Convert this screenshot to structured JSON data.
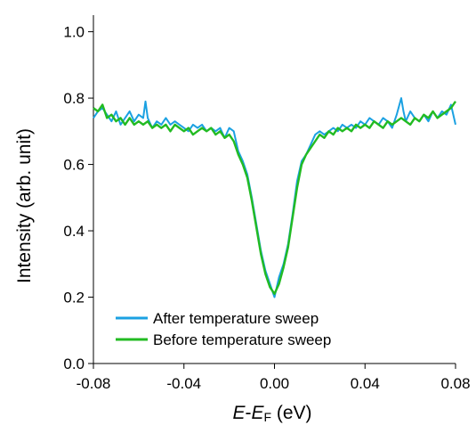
{
  "chart_data": {
    "type": "line",
    "xlabel": {
      "italic1": "E",
      "dash": "-",
      "italic2": "E",
      "sub": "F",
      "rest": " (eV)"
    },
    "ylabel": "Intensity (arb. unit)",
    "xlim": [
      -0.08,
      0.08
    ],
    "ylim": [
      0.0,
      1.05
    ],
    "xticks": [
      -0.08,
      -0.04,
      0.0,
      0.04,
      0.08
    ],
    "xtick_labels": [
      "-0.08",
      "-0.04",
      "0.00",
      "0.04",
      "0.08"
    ],
    "yticks": [
      0.0,
      0.2,
      0.4,
      0.6,
      0.8,
      1.0
    ],
    "ytick_labels": [
      "0.0",
      "0.2",
      "0.4",
      "0.6",
      "0.8",
      "1.0"
    ],
    "grid": false,
    "legend_position": "bottom-left",
    "series": [
      {
        "name": "After temperature sweep",
        "color": "#1ba1e2",
        "x": [
          -0.08,
          -0.078,
          -0.076,
          -0.074,
          -0.072,
          -0.07,
          -0.068,
          -0.066,
          -0.064,
          -0.062,
          -0.06,
          -0.058,
          -0.057,
          -0.056,
          -0.054,
          -0.052,
          -0.05,
          -0.048,
          -0.046,
          -0.044,
          -0.042,
          -0.04,
          -0.038,
          -0.036,
          -0.034,
          -0.032,
          -0.03,
          -0.028,
          -0.026,
          -0.024,
          -0.022,
          -0.02,
          -0.018,
          -0.016,
          -0.014,
          -0.012,
          -0.01,
          -0.008,
          -0.006,
          -0.004,
          -0.002,
          0.0,
          0.002,
          0.004,
          0.006,
          0.008,
          0.01,
          0.012,
          0.014,
          0.016,
          0.018,
          0.02,
          0.022,
          0.024,
          0.026,
          0.028,
          0.03,
          0.032,
          0.034,
          0.036,
          0.038,
          0.04,
          0.042,
          0.044,
          0.046,
          0.048,
          0.05,
          0.052,
          0.054,
          0.056,
          0.057,
          0.058,
          0.06,
          0.062,
          0.064,
          0.066,
          0.068,
          0.07,
          0.072,
          0.074,
          0.076,
          0.078,
          0.08
        ],
        "y": [
          0.74,
          0.76,
          0.77,
          0.75,
          0.73,
          0.76,
          0.72,
          0.74,
          0.76,
          0.73,
          0.75,
          0.74,
          0.79,
          0.74,
          0.71,
          0.73,
          0.72,
          0.74,
          0.72,
          0.73,
          0.72,
          0.71,
          0.7,
          0.72,
          0.71,
          0.72,
          0.7,
          0.71,
          0.7,
          0.71,
          0.68,
          0.71,
          0.7,
          0.64,
          0.61,
          0.57,
          0.5,
          0.42,
          0.34,
          0.28,
          0.24,
          0.2,
          0.26,
          0.3,
          0.36,
          0.45,
          0.55,
          0.61,
          0.63,
          0.66,
          0.69,
          0.7,
          0.69,
          0.7,
          0.71,
          0.7,
          0.72,
          0.71,
          0.72,
          0.71,
          0.73,
          0.72,
          0.74,
          0.73,
          0.72,
          0.74,
          0.73,
          0.71,
          0.75,
          0.8,
          0.76,
          0.73,
          0.76,
          0.74,
          0.73,
          0.75,
          0.73,
          0.76,
          0.74,
          0.76,
          0.75,
          0.78,
          0.72
        ]
      },
      {
        "name": "Before temperature sweep",
        "color": "#22bb22",
        "x": [
          -0.08,
          -0.078,
          -0.076,
          -0.074,
          -0.072,
          -0.07,
          -0.068,
          -0.066,
          -0.064,
          -0.062,
          -0.06,
          -0.058,
          -0.056,
          -0.054,
          -0.052,
          -0.05,
          -0.048,
          -0.046,
          -0.044,
          -0.042,
          -0.04,
          -0.038,
          -0.036,
          -0.034,
          -0.032,
          -0.03,
          -0.028,
          -0.026,
          -0.024,
          -0.022,
          -0.02,
          -0.018,
          -0.016,
          -0.014,
          -0.012,
          -0.01,
          -0.008,
          -0.006,
          -0.004,
          -0.002,
          0.0,
          0.002,
          0.004,
          0.006,
          0.008,
          0.01,
          0.012,
          0.014,
          0.016,
          0.018,
          0.02,
          0.022,
          0.024,
          0.026,
          0.028,
          0.03,
          0.032,
          0.034,
          0.036,
          0.038,
          0.04,
          0.042,
          0.044,
          0.046,
          0.048,
          0.05,
          0.052,
          0.054,
          0.056,
          0.058,
          0.06,
          0.062,
          0.064,
          0.066,
          0.068,
          0.07,
          0.072,
          0.074,
          0.076,
          0.078,
          0.08
        ],
        "y": [
          0.77,
          0.76,
          0.78,
          0.74,
          0.75,
          0.73,
          0.74,
          0.72,
          0.74,
          0.72,
          0.73,
          0.72,
          0.73,
          0.71,
          0.72,
          0.71,
          0.72,
          0.7,
          0.72,
          0.71,
          0.7,
          0.71,
          0.69,
          0.7,
          0.71,
          0.7,
          0.71,
          0.69,
          0.7,
          0.68,
          0.69,
          0.67,
          0.63,
          0.6,
          0.56,
          0.49,
          0.41,
          0.33,
          0.27,
          0.23,
          0.21,
          0.24,
          0.29,
          0.35,
          0.44,
          0.53,
          0.6,
          0.63,
          0.65,
          0.67,
          0.69,
          0.68,
          0.7,
          0.69,
          0.71,
          0.7,
          0.71,
          0.7,
          0.72,
          0.71,
          0.72,
          0.71,
          0.73,
          0.72,
          0.71,
          0.73,
          0.72,
          0.73,
          0.74,
          0.73,
          0.72,
          0.74,
          0.73,
          0.75,
          0.74,
          0.76,
          0.74,
          0.75,
          0.76,
          0.77,
          0.79
        ]
      }
    ]
  }
}
